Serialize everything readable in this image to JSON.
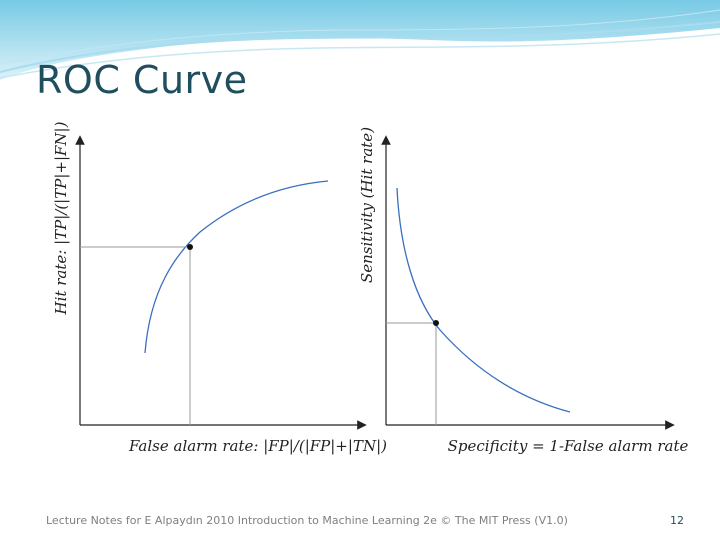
{
  "slide": {
    "title": "ROC Curve",
    "footer": "Lecture Notes for E Alpaydın 2010 Introduction to Machine Learning 2e © The MIT Press (V1.0)",
    "page_number": "12"
  },
  "left_plot": {
    "ylabel": "Hit rate: |TP|/(|TP|+|FN|)",
    "xlabel": "False alarm rate: |FP|/(|FP|+|TN|)"
  },
  "right_plot": {
    "ylabel": "Sensitivity (Hit rate)",
    "xlabel": "Specificity = 1-False alarm rate"
  },
  "colors": {
    "title": "#1f4e5f",
    "curve": "#3a6fc0",
    "header_wave": "#8fd0e8"
  }
}
